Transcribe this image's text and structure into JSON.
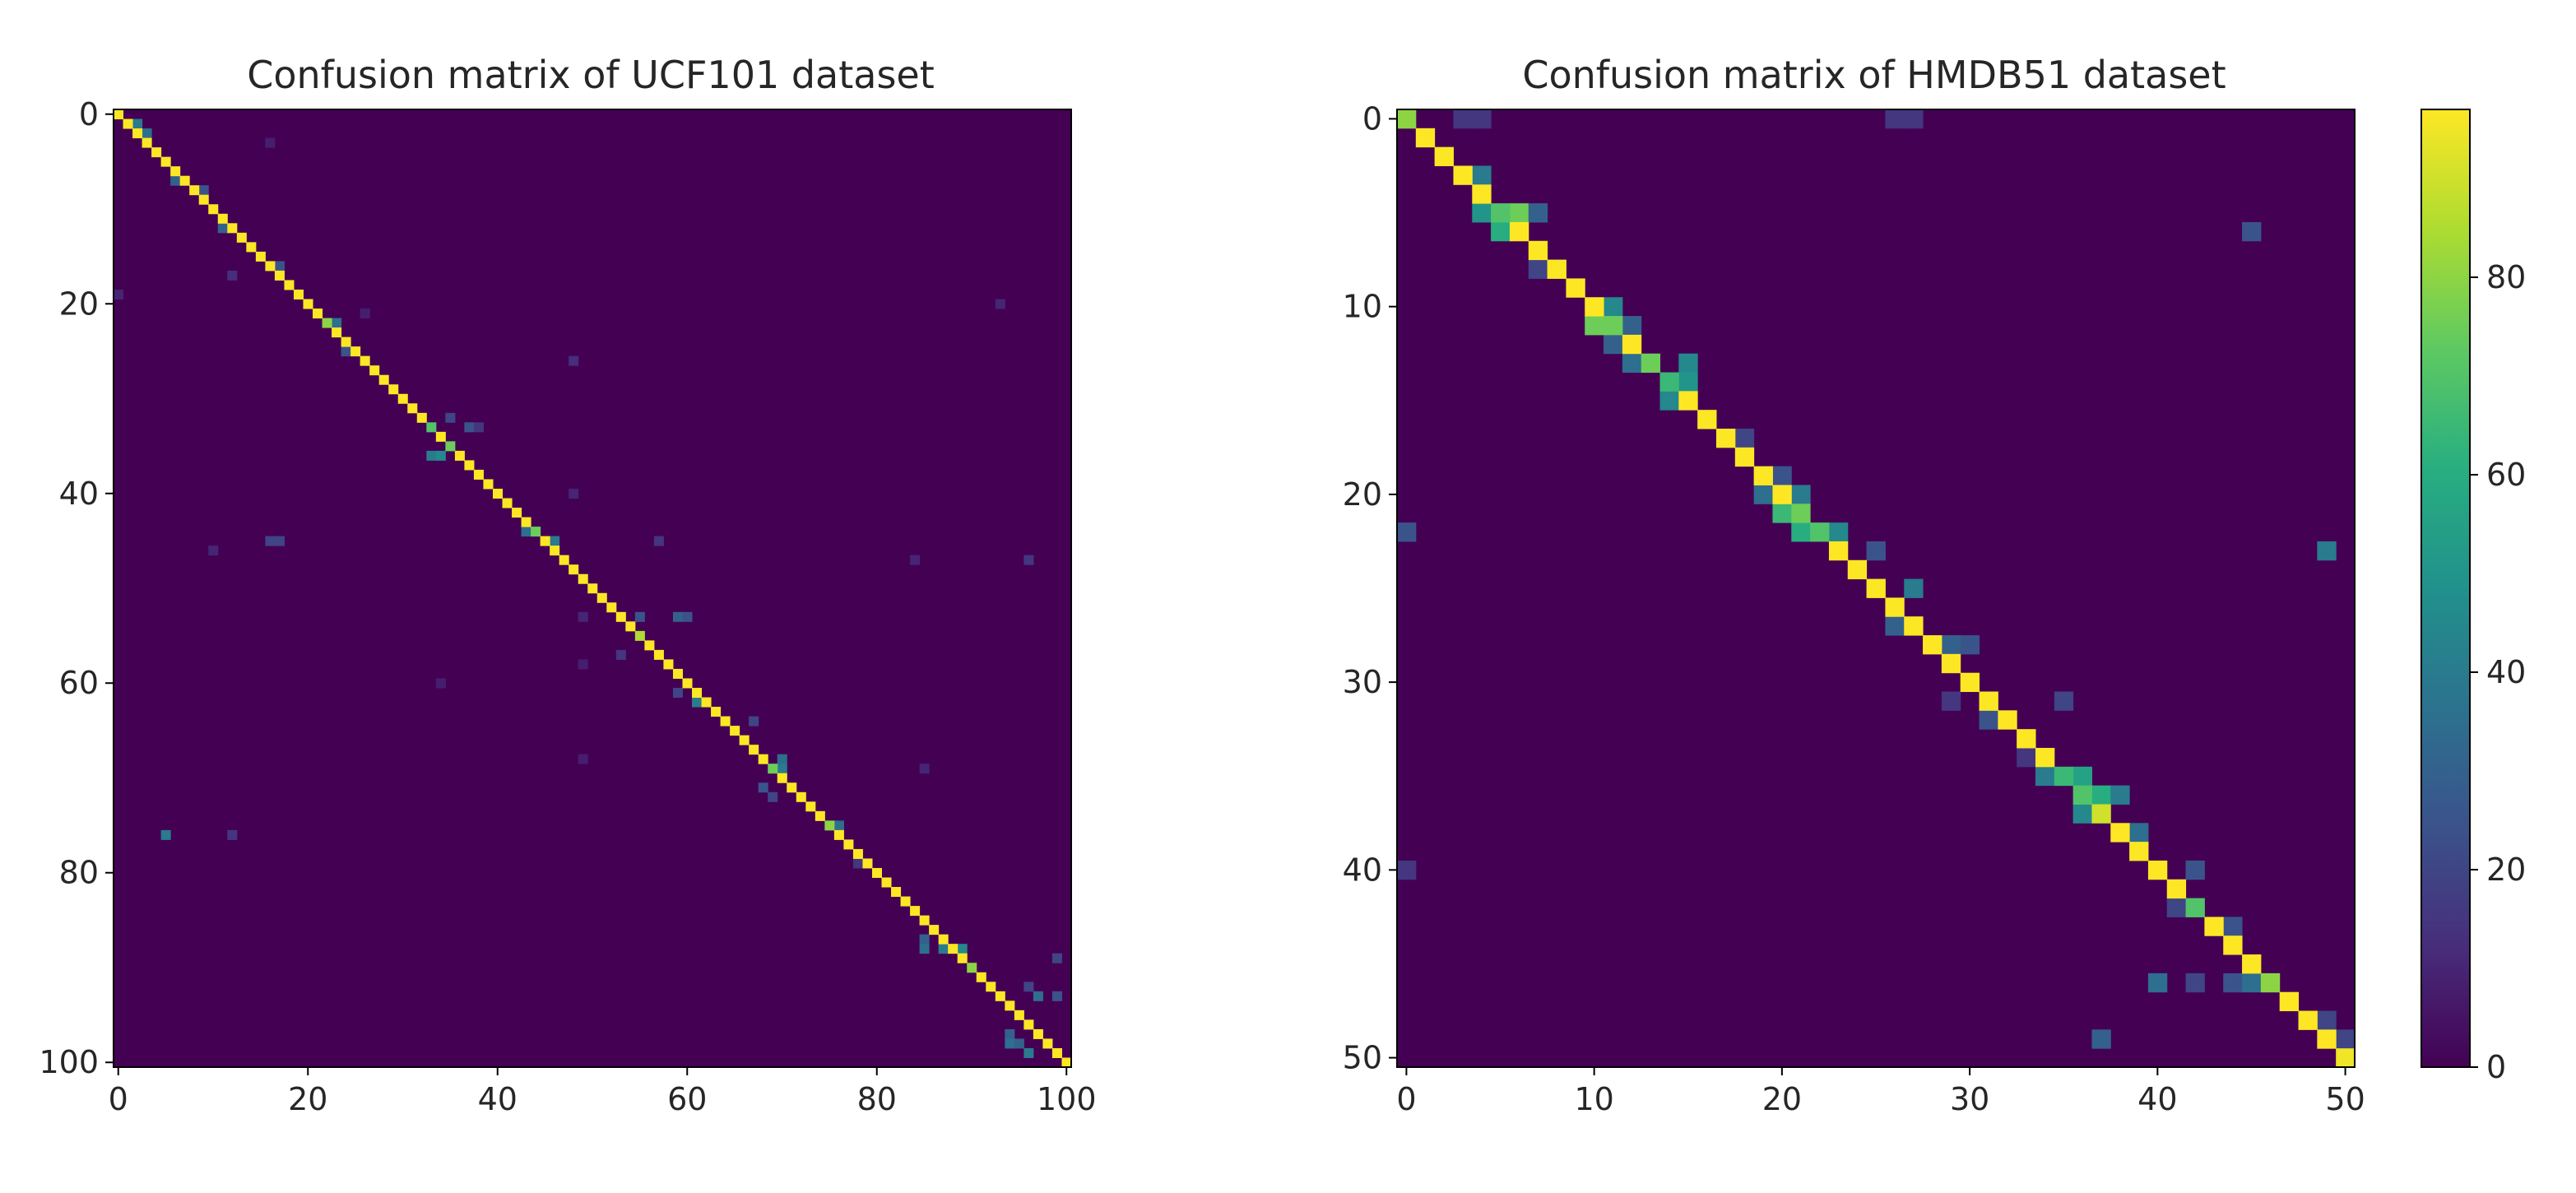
{
  "chart_data": [
    {
      "type": "heatmap",
      "title": "Confusion matrix of UCF101 dataset",
      "n_classes": 101,
      "colormap": "viridis",
      "vmin": 0,
      "vmax": 97,
      "xlim": [
        0,
        100
      ],
      "ylim": [
        100,
        0
      ],
      "x_ticks": [
        0,
        20,
        40,
        60,
        80,
        100
      ],
      "y_ticks": [
        0,
        20,
        40,
        60,
        80,
        100
      ],
      "diagonal_default": 97,
      "diagonal_overrides": [
        [
          22,
          80
        ],
        [
          33,
          70
        ],
        [
          35,
          75
        ],
        [
          44,
          75
        ],
        [
          55,
          85
        ],
        [
          69,
          75
        ],
        [
          75,
          80
        ],
        [
          90,
          80
        ]
      ],
      "off_diagonal": [
        [
          1,
          2,
          40
        ],
        [
          2,
          3,
          35
        ],
        [
          7,
          6,
          30
        ],
        [
          8,
          9,
          25
        ],
        [
          12,
          11,
          30
        ],
        [
          16,
          17,
          25
        ],
        [
          19,
          0,
          10
        ],
        [
          17,
          12,
          12
        ],
        [
          22,
          23,
          35
        ],
        [
          25,
          24,
          25
        ],
        [
          26,
          48,
          12
        ],
        [
          21,
          26,
          8
        ],
        [
          32,
          35,
          20
        ],
        [
          33,
          37,
          25
        ],
        [
          34,
          34,
          30
        ],
        [
          36,
          33,
          40
        ],
        [
          36,
          34,
          45
        ],
        [
          33,
          38,
          15
        ],
        [
          40,
          48,
          10
        ],
        [
          45,
          16,
          20
        ],
        [
          45,
          17,
          20
        ],
        [
          46,
          10,
          10
        ],
        [
          44,
          43,
          35
        ],
        [
          45,
          46,
          40
        ],
        [
          45,
          57,
          15
        ],
        [
          47,
          84,
          10
        ],
        [
          47,
          96,
          15
        ],
        [
          53,
          49,
          10
        ],
        [
          53,
          55,
          25
        ],
        [
          53,
          59,
          30
        ],
        [
          53,
          60,
          25
        ],
        [
          57,
          53,
          15
        ],
        [
          58,
          49,
          8
        ],
        [
          60,
          34,
          8
        ],
        [
          61,
          59,
          20
        ],
        [
          62,
          61,
          40
        ],
        [
          64,
          67,
          20
        ],
        [
          68,
          49,
          8
        ],
        [
          68,
          70,
          35
        ],
        [
          69,
          70,
          40
        ],
        [
          71,
          68,
          25
        ],
        [
          72,
          69,
          20
        ],
        [
          75,
          76,
          35
        ],
        [
          76,
          5,
          40
        ],
        [
          76,
          12,
          15
        ],
        [
          69,
          85,
          10
        ],
        [
          79,
          78,
          15
        ],
        [
          86,
          86,
          20
        ],
        [
          87,
          85,
          30
        ],
        [
          88,
          85,
          35
        ],
        [
          88,
          87,
          40
        ],
        [
          88,
          89,
          45
        ],
        [
          89,
          99,
          20
        ],
        [
          92,
          96,
          20
        ],
        [
          93,
          97,
          35
        ],
        [
          93,
          99,
          25
        ],
        [
          97,
          94,
          30
        ],
        [
          98,
          94,
          35
        ],
        [
          98,
          95,
          30
        ],
        [
          99,
          96,
          40
        ],
        [
          20,
          93,
          10
        ],
        [
          3,
          16,
          8
        ],
        [
          0,
          0,
          90
        ]
      ]
    },
    {
      "type": "heatmap",
      "title": "Confusion matrix of HMDB51 dataset",
      "n_classes": 51,
      "colormap": "viridis",
      "vmin": 0,
      "vmax": 97,
      "xlim": [
        0,
        50
      ],
      "ylim": [
        50,
        0
      ],
      "x_ticks": [
        0,
        10,
        20,
        30,
        40,
        50
      ],
      "y_ticks": [
        0,
        10,
        20,
        30,
        40,
        50
      ],
      "diagonal_default": 97,
      "diagonal_overrides": [
        [
          0,
          80
        ],
        [
          5,
          70
        ],
        [
          11,
          75
        ],
        [
          13,
          75
        ],
        [
          14,
          65
        ],
        [
          21,
          75
        ],
        [
          22,
          70
        ],
        [
          35,
          65
        ],
        [
          36,
          70
        ],
        [
          37,
          90
        ],
        [
          42,
          70
        ],
        [
          46,
          80
        ],
        [
          50,
          95
        ]
      ],
      "off_diagonal": [
        [
          0,
          3,
          15
        ],
        [
          0,
          4,
          15
        ],
        [
          0,
          26,
          15
        ],
        [
          0,
          27,
          15
        ],
        [
          3,
          4,
          40
        ],
        [
          5,
          6,
          75
        ],
        [
          5,
          4,
          50
        ],
        [
          5,
          7,
          30
        ],
        [
          6,
          5,
          60
        ],
        [
          8,
          7,
          20
        ],
        [
          10,
          11,
          45
        ],
        [
          11,
          10,
          75
        ],
        [
          11,
          12,
          30
        ],
        [
          13,
          12,
          35
        ],
        [
          13,
          15,
          45
        ],
        [
          14,
          15,
          50
        ],
        [
          15,
          14,
          45
        ],
        [
          17,
          18,
          20
        ],
        [
          19,
          20,
          25
        ],
        [
          20,
          19,
          35
        ],
        [
          20,
          21,
          40
        ],
        [
          21,
          20,
          65
        ],
        [
          22,
          21,
          60
        ],
        [
          22,
          23,
          45
        ],
        [
          23,
          25,
          25
        ],
        [
          25,
          27,
          40
        ],
        [
          27,
          26,
          30
        ],
        [
          28,
          29,
          30
        ],
        [
          28,
          30,
          25
        ],
        [
          31,
          29,
          15
        ],
        [
          31,
          35,
          20
        ],
        [
          32,
          31,
          25
        ],
        [
          34,
          33,
          15
        ],
        [
          35,
          36,
          55
        ],
        [
          35,
          34,
          40
        ],
        [
          36,
          37,
          60
        ],
        [
          36,
          38,
          40
        ],
        [
          37,
          36,
          45
        ],
        [
          38,
          39,
          35
        ],
        [
          40,
          42,
          25
        ],
        [
          42,
          41,
          20
        ],
        [
          43,
          44,
          25
        ],
        [
          46,
          40,
          35
        ],
        [
          46,
          42,
          20
        ],
        [
          46,
          44,
          25
        ],
        [
          46,
          45,
          35
        ],
        [
          48,
          49,
          20
        ],
        [
          49,
          37,
          30
        ],
        [
          49,
          50,
          20
        ],
        [
          6,
          45,
          25
        ],
        [
          23,
          49,
          40
        ],
        [
          22,
          0,
          25
        ],
        [
          40,
          0,
          15
        ],
        [
          12,
          11,
          30
        ]
      ]
    }
  ],
  "colorbar": {
    "vmin": 0,
    "vmax": 97,
    "ticks": [
      0,
      20,
      40,
      60,
      80
    ]
  }
}
